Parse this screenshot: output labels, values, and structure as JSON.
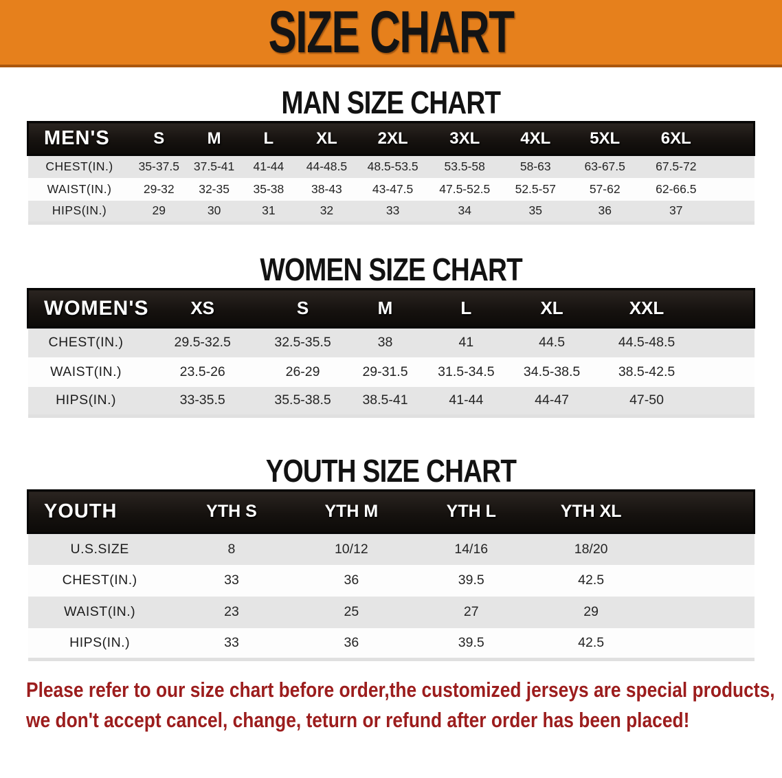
{
  "banner": {
    "title": "SIZE CHART"
  },
  "colors": {
    "banner_orange": "#e6801c",
    "banner_border": "#aa570e",
    "header_black": "#16120f",
    "row_stripe_gray": "#e5e5e5",
    "disclaimer_red": "#9c1d1d"
  },
  "men": {
    "heading": "MAN SIZE CHART",
    "table": {
      "header": [
        "MEN'S",
        "S",
        "M",
        "L",
        "XL",
        "2XL",
        "3XL",
        "4XL",
        "5XL",
        "6XL"
      ],
      "rows": [
        [
          "CHEST(IN.)",
          "35-37.5",
          "37.5-41",
          "41-44",
          "44-48.5",
          "48.5-53.5",
          "53.5-58",
          "58-63",
          "63-67.5",
          "67.5-72"
        ],
        [
          "WAIST(IN.)",
          "29-32",
          "32-35",
          "35-38",
          "38-43",
          "43-47.5",
          "47.5-52.5",
          "52.5-57",
          "57-62",
          "62-66.5"
        ],
        [
          "HIPS(IN.)",
          "29",
          "30",
          "31",
          "32",
          "33",
          "34",
          "35",
          "36",
          "37"
        ]
      ]
    }
  },
  "women": {
    "heading": "WOMEN SIZE CHART",
    "table": {
      "header": [
        "WOMEN'S",
        "XS",
        "S",
        "M",
        "L",
        "XL",
        "XXL"
      ],
      "rows": [
        [
          "CHEST(IN.)",
          "29.5-32.5",
          "32.5-35.5",
          "38",
          "41",
          "44.5",
          "44.5-48.5"
        ],
        [
          "WAIST(IN.)",
          "23.5-26",
          "26-29",
          "29-31.5",
          "31.5-34.5",
          "34.5-38.5",
          "38.5-42.5"
        ],
        [
          "HIPS(IN.)",
          "33-35.5",
          "35.5-38.5",
          "38.5-41",
          "41-44",
          "44-47",
          "47-50"
        ]
      ]
    }
  },
  "youth": {
    "heading": "YOUTH SIZE CHART",
    "table": {
      "header": [
        "YOUTH",
        "YTH S",
        "YTH M",
        "YTH L",
        "YTH XL"
      ],
      "rows": [
        [
          "U.S.SIZE",
          "8",
          "10/12",
          "14/16",
          "18/20"
        ],
        [
          "CHEST(IN.)",
          "33",
          "36",
          "39.5",
          "42.5"
        ],
        [
          "WAIST(IN.)",
          "23",
          "25",
          "27",
          "29"
        ],
        [
          "HIPS(IN.)",
          "33",
          "36",
          "39.5",
          "42.5"
        ]
      ]
    }
  },
  "disclaimer": {
    "line1": "Please refer to our size chart before order,the customized jerseys are special products,",
    "line2": "we don't accept cancel, change, teturn or refund after order has been placed!"
  }
}
